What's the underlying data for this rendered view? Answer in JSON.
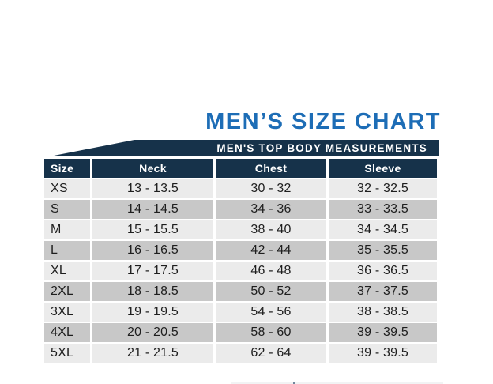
{
  "header": {
    "title": "MEN’S SIZE CHART",
    "banner": "MEN'S TOP BODY MEASUREMENTS"
  },
  "chart_data": {
    "type": "table",
    "title": "MEN’S SIZE CHART",
    "subtitle": "MEN'S TOP BODY MEASUREMENTS",
    "columns": [
      "Size",
      "Neck",
      "Chest",
      "Sleeve"
    ],
    "rows": [
      [
        "XS",
        "13 - 13.5",
        "30 - 32",
        "32 - 32.5"
      ],
      [
        "S",
        "14 - 14.5",
        "34 - 36",
        "33 - 33.5"
      ],
      [
        "M",
        "15 - 15.5",
        "38 - 40",
        "34 - 34.5"
      ],
      [
        "L",
        "16 - 16.5",
        "42 - 44",
        "35 - 35.5"
      ],
      [
        "XL",
        "17 - 17.5",
        "46 - 48",
        "36 - 36.5"
      ],
      [
        "2XL",
        "18 - 18.5",
        "50 - 52",
        "37 - 37.5"
      ],
      [
        "3XL",
        "19 - 19.5",
        "54 - 56",
        "38 - 38.5"
      ],
      [
        "4XL",
        "20 - 20.5",
        "58 - 60",
        "39 - 39.5"
      ],
      [
        "5XL",
        "21 - 21.5",
        "62 - 64",
        "39 - 39.5"
      ]
    ],
    "layout": {
      "row_striping": "alternating light/dark gray starting light",
      "banner_shape": "dark navy ribbon with slanted top-left corner",
      "grid": "white 2-3px gaps between all cells"
    }
  },
  "colors": {
    "title_blue": "#1d6db6",
    "navy": "#16324a",
    "row_light": "#ebebeb",
    "row_dark": "#c8c8c8",
    "cell_text": "#1e1e1e",
    "page_bg": "#ffffff"
  }
}
